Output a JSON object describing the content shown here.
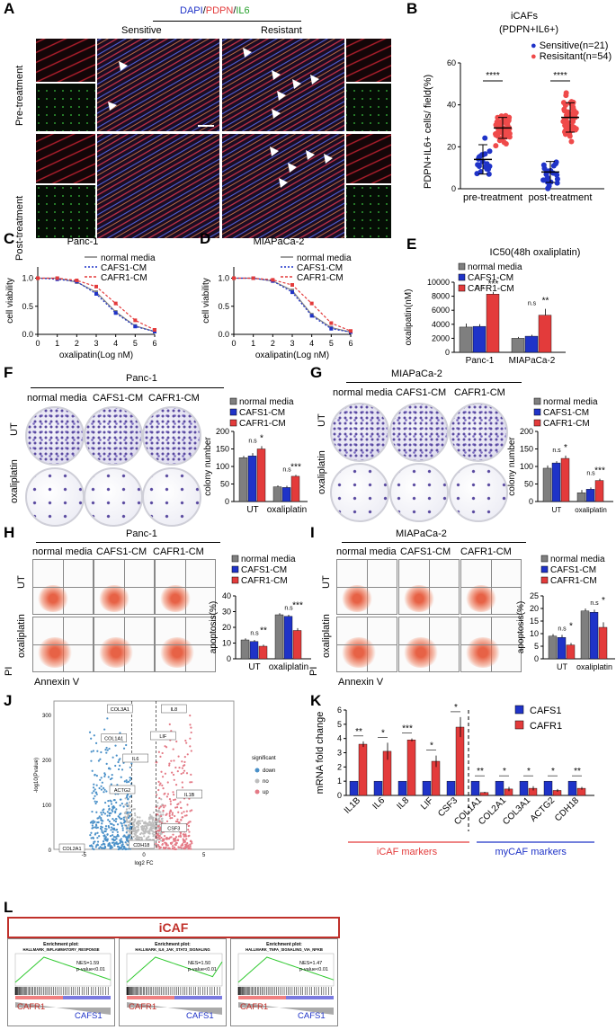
{
  "panels": {
    "A": {
      "letter": "A",
      "stain_dapi": "DAPI",
      "stain_sep1": "/",
      "stain_pdpn": "PDPN",
      "stain_sep2": "/",
      "stain_il6": "IL6",
      "col_sensitive": "Sensitive",
      "col_resistant": "Resistant",
      "row_pre": "Pre-treatment",
      "row_post": "Post-treatment"
    },
    "B": {
      "letter": "B",
      "title_line1": "iCAFs",
      "title_line2": "(PDPN+IL6+)",
      "legend_sensitive": "Sensitive(n=21)",
      "legend_resistant": "Resisitant(n=54)",
      "ylabel": "PDPN+IL6+ cells/ field(%)",
      "sig": "****",
      "colors": {
        "sensitive": "#1f33c8",
        "resistant": "#ef4a4a"
      }
    },
    "C": {
      "letter": "C",
      "title": "Panc-1"
    },
    "D": {
      "letter": "D",
      "title": "MIAPaCa-2"
    },
    "E": {
      "letter": "E",
      "title": "IC50(48h oxaliplatin)"
    },
    "F": {
      "letter": "F",
      "title": "Panc-1",
      "col1": "normal media",
      "col2": "CAFS1-CM",
      "col3": "CAFR1-CM",
      "row_ut": "UT",
      "row_ox": "oxaliplatin"
    },
    "G": {
      "letter": "G",
      "title": "MIAPaCa-2",
      "col1": "normal media",
      "col2": "CAFS1-CM",
      "col3": "CAFR1-CM",
      "row_ut": "UT",
      "row_ox": "oxaliplatin"
    },
    "H": {
      "letter": "H",
      "title": "Panc-1",
      "col1": "normal media",
      "col2": "CAFS1-CM",
      "col3": "CAFR1-CM",
      "row_ut": "UT",
      "row_ox": "oxaliplatin",
      "yaxis": "PI",
      "xaxis": "Annexin V"
    },
    "I": {
      "letter": "I",
      "title": "MIAPaCa-2",
      "col1": "normal media",
      "col2": "CAFS1-CM",
      "col3": "CAFR1-CM",
      "row_ut": "UT",
      "row_ox": "oxaliplatin",
      "yaxis": "PI",
      "xaxis": "Annexin V"
    },
    "J": {
      "letter": "J",
      "xlabel": "log2 FC",
      "ylabel": "-log10(Pvalue)",
      "legend_title": "significant",
      "legend_down": "down",
      "legend_no": "no",
      "legend_up": "up",
      "genes": [
        "COL3A1",
        "COL1A1",
        "ACTG2",
        "COL2A1",
        "CDH18",
        "IL6",
        "LIF",
        "IL8",
        "IL1B",
        "CSF3"
      ]
    },
    "K": {
      "letter": "K",
      "legend_s": "CAFS1",
      "legend_r": "CAFR1",
      "group_icaf": "iCAF markers",
      "group_mycaf": "myCAF markers"
    },
    "L": {
      "letter": "L",
      "header": "iCAF",
      "plots": [
        {
          "title1": "Enrichment plot:",
          "title2": "HALLMARK_INFLAMMATORY_RESPONSE",
          "nes": "NES=1.59",
          "p": "p-value<0.01"
        },
        {
          "title1": "Enrichment plot:",
          "title2": "HALLMARK_IL6_JAK_STAT3_SIGNALING",
          "nes": "NES=1.50",
          "p": "p-value<0.01"
        },
        {
          "title1": "Enrichment plot:",
          "title2": "HALLMARK_TNFA_SIGNALING_VIA_NFKB",
          "nes": "NES=1.47",
          "p": "p-value<0.01"
        }
      ],
      "left_label": "CAFR1",
      "right_label": "CAFS1"
    }
  },
  "common": {
    "legend_normal": "normal media",
    "legend_s": "CAFS1-CM",
    "legend_r": "CAFR1-CM",
    "colors": {
      "normal": "#7f7f7f",
      "s": "#1f33c8",
      "r": "#e33b3b"
    }
  },
  "chart_data": [
    {
      "id": "B",
      "type": "scatter",
      "title": "iCAFs (PDPN+IL6+)",
      "categories": [
        "pre-treatment",
        "post-treatment"
      ],
      "ylabel": "PDPN+IL6+ cells/ field(%)",
      "ylim": [
        0,
        60
      ],
      "yticks": [
        0,
        20,
        40,
        60
      ],
      "series": [
        {
          "name": "Sensitive(n=21)",
          "means": [
            14,
            8
          ],
          "sd": [
            7,
            5
          ]
        },
        {
          "name": "Resisitant(n=54)",
          "means": [
            29,
            34
          ],
          "sd": [
            5,
            7
          ]
        }
      ],
      "annotations": [
        "****",
        "****"
      ]
    },
    {
      "id": "C",
      "type": "line",
      "title": "Panc-1",
      "xlabel": "oxalipatin(Log nM)",
      "ylabel": "cell viability",
      "xlim": [
        0,
        6
      ],
      "ylim": [
        0,
        1.2
      ],
      "xticks": [
        0,
        1,
        2,
        3,
        4,
        5,
        6
      ],
      "yticks": [
        0.0,
        0.5,
        1.0
      ],
      "x": [
        0,
        1,
        2,
        3,
        4,
        5,
        6
      ],
      "series": [
        {
          "name": "normal media",
          "values": [
            1.0,
            1.0,
            0.93,
            0.75,
            0.4,
            0.15,
            0.05
          ]
        },
        {
          "name": "CAFS1-CM",
          "values": [
            1.0,
            0.98,
            0.94,
            0.72,
            0.38,
            0.14,
            0.05
          ]
        },
        {
          "name": "CAFR1-CM",
          "values": [
            1.0,
            1.0,
            0.96,
            0.85,
            0.55,
            0.25,
            0.08
          ]
        }
      ]
    },
    {
      "id": "D",
      "type": "line",
      "title": "MIAPaCa-2",
      "xlabel": "oxalipatin(Log nM)",
      "ylabel": "cell viability",
      "xlim": [
        0,
        6
      ],
      "ylim": [
        0,
        1.2
      ],
      "xticks": [
        0,
        1,
        2,
        3,
        4,
        5,
        6
      ],
      "yticks": [
        0.0,
        0.5,
        1.0
      ],
      "x": [
        0,
        1,
        2,
        3,
        4,
        5,
        6
      ],
      "series": [
        {
          "name": "normal media",
          "values": [
            1.0,
            1.0,
            0.95,
            0.78,
            0.35,
            0.12,
            0.04
          ]
        },
        {
          "name": "CAFS1-CM",
          "values": [
            1.0,
            1.0,
            0.95,
            0.75,
            0.33,
            0.1,
            0.04
          ]
        },
        {
          "name": "CAFR1-CM",
          "values": [
            1.0,
            1.0,
            0.97,
            0.88,
            0.55,
            0.2,
            0.06
          ]
        }
      ]
    },
    {
      "id": "E",
      "type": "bar",
      "title": "IC50(48h oxaliplatin)",
      "categories": [
        "Panc-1",
        "MIAPaCa-2"
      ],
      "ylabel": "oxalipatin(nM)",
      "ylim": [
        0,
        10000
      ],
      "yticks": [
        0,
        2000,
        4000,
        6000,
        8000,
        10000
      ],
      "series": [
        {
          "name": "normal media",
          "values": [
            3600,
            2000
          ],
          "err": [
            500,
            200
          ]
        },
        {
          "name": "CAFS1-CM",
          "values": [
            3700,
            2300
          ],
          "err": [
            300,
            200
          ]
        },
        {
          "name": "CAFR1-CM",
          "values": [
            8300,
            5300
          ],
          "err": [
            300,
            900
          ]
        }
      ],
      "annotations": [
        [
          "n.s",
          "***"
        ],
        [
          "n.s",
          "**"
        ]
      ]
    },
    {
      "id": "F",
      "type": "bar",
      "categories": [
        "UT",
        "oxaliplatin"
      ],
      "ylabel": "colony number",
      "ylim": [
        0,
        200
      ],
      "yticks": [
        0,
        50,
        100,
        150,
        200
      ],
      "series": [
        {
          "name": "normal media",
          "values": [
            125,
            42
          ],
          "err": [
            5,
            4
          ]
        },
        {
          "name": "CAFS1-CM",
          "values": [
            130,
            40
          ],
          "err": [
            8,
            5
          ]
        },
        {
          "name": "CAFR1-CM",
          "values": [
            150,
            72
          ],
          "err": [
            8,
            4
          ]
        }
      ],
      "annotations": [
        [
          "n.s",
          "*"
        ],
        [
          "n.s",
          "***"
        ]
      ]
    },
    {
      "id": "G",
      "type": "bar",
      "categories": [
        "UT",
        "oxaliplatin"
      ],
      "ylabel": "colony number",
      "ylim": [
        0,
        200
      ],
      "yticks": [
        0,
        50,
        100,
        150,
        200
      ],
      "series": [
        {
          "name": "normal media",
          "values": [
            95,
            25
          ],
          "err": [
            8,
            8
          ]
        },
        {
          "name": "CAFS1-CM",
          "values": [
            110,
            35
          ],
          "err": [
            5,
            5
          ]
        },
        {
          "name": "CAFR1-CM",
          "values": [
            123,
            60
          ],
          "err": [
            8,
            5
          ]
        }
      ],
      "annotations": [
        [
          "n.s",
          "*"
        ],
        [
          "n.s",
          "***"
        ]
      ]
    },
    {
      "id": "H",
      "type": "bar",
      "categories": [
        "UT",
        "oxaliplatin"
      ],
      "ylabel": "apoptosis(%)",
      "ylim": [
        0,
        40
      ],
      "yticks": [
        0,
        10,
        20,
        30,
        40
      ],
      "series": [
        {
          "name": "normal media",
          "values": [
            12,
            28
          ],
          "err": [
            1,
            1
          ]
        },
        {
          "name": "CAFS1-CM",
          "values": [
            11,
            27
          ],
          "err": [
            1,
            1
          ]
        },
        {
          "name": "CAFR1-CM",
          "values": [
            8,
            18
          ],
          "err": [
            1,
            1.5
          ]
        }
      ],
      "annotations": [
        [
          "n.s",
          "**"
        ],
        [
          "n.s",
          "***"
        ]
      ]
    },
    {
      "id": "I",
      "type": "bar",
      "categories": [
        "UT",
        "oxaliplatin"
      ],
      "ylabel": "apoptosis(%)",
      "ylim": [
        0,
        25
      ],
      "yticks": [
        0,
        5,
        10,
        15,
        20,
        25
      ],
      "series": [
        {
          "name": "normal media",
          "values": [
            9,
            19
          ],
          "err": [
            0.8,
            1
          ]
        },
        {
          "name": "CAFS1-CM",
          "values": [
            8.5,
            18.5
          ],
          "err": [
            1,
            1
          ]
        },
        {
          "name": "CAFR1-CM",
          "values": [
            5.5,
            12.5
          ],
          "err": [
            0.8,
            2
          ]
        }
      ],
      "annotations": [
        [
          "n.s",
          "*"
        ],
        [
          "n.s",
          "*"
        ]
      ]
    },
    {
      "id": "K",
      "type": "bar",
      "ylabel": "mRNA fold change",
      "categories": [
        "IL1B",
        "IL6",
        "IL8",
        "LIF",
        "CSF3",
        "COL1A1",
        "COL2A1",
        "COL3A1",
        "ACTG2",
        "CDH18"
      ],
      "ylim": [
        0,
        6
      ],
      "yticks": [
        0,
        1,
        2,
        3,
        4,
        5,
        6
      ],
      "series": [
        {
          "name": "CAFS1",
          "values": [
            1,
            1,
            1,
            1,
            1,
            1,
            1,
            1,
            1,
            1
          ]
        },
        {
          "name": "CAFR1",
          "values": [
            3.6,
            3.1,
            3.9,
            2.4,
            4.8,
            0.2,
            0.45,
            0.5,
            0.35,
            0.5
          ],
          "err": [
            0.2,
            0.6,
            0.1,
            0.4,
            0.7,
            0.05,
            0.15,
            0.15,
            0.1,
            0.1
          ]
        }
      ],
      "annotations": [
        "**",
        "*",
        "***",
        "*",
        "*",
        "**",
        "*",
        "*",
        "*",
        "**"
      ]
    }
  ]
}
